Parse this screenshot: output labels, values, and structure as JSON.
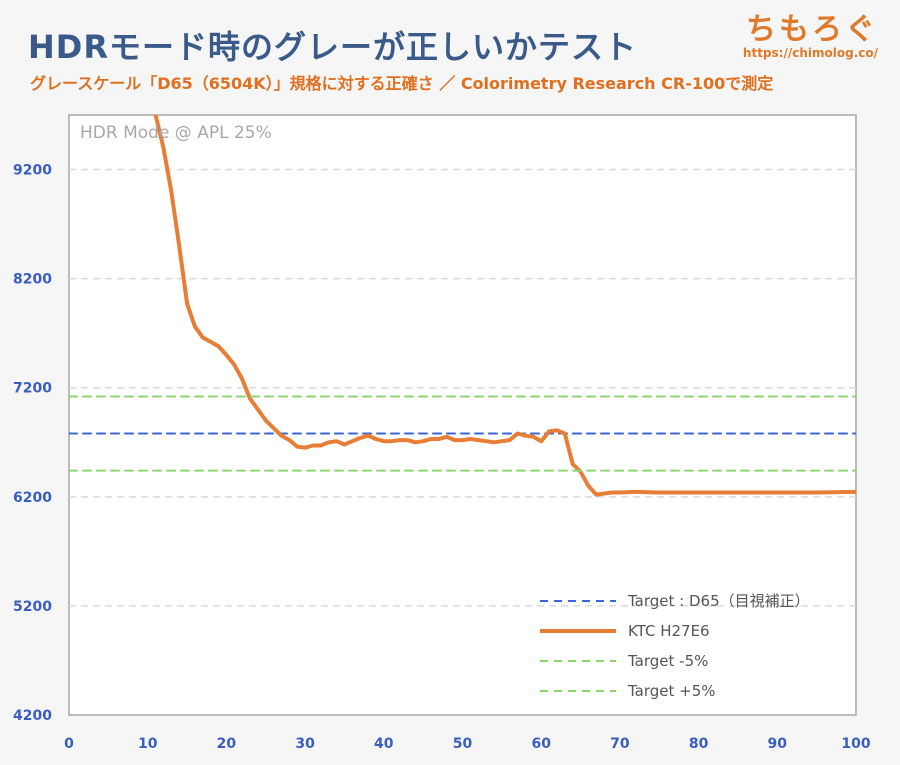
{
  "header": {
    "title": "HDRモード時のグレーが正しいかテスト",
    "subtitle": "グレースケール「D65（6504K）」規格に対する正確さ ／ Colorimetry Research CR-100で測定"
  },
  "brand": {
    "name": "ちもろぐ",
    "url": "https://chimolog.co/"
  },
  "chart_data": {
    "type": "line",
    "annotation": "HDR Mode @ APL 25%",
    "xlim": [
      0,
      100
    ],
    "ylim": [
      4200,
      9700
    ],
    "x_ticks": [
      0,
      10,
      20,
      30,
      40,
      50,
      60,
      70,
      80,
      90,
      100
    ],
    "y_ticks": [
      4200,
      5200,
      6200,
      7200,
      8200,
      9200
    ],
    "grid": true,
    "legend_position": "bottom-right",
    "series": [
      {
        "name": "Target : D65（目視補正）",
        "color": "#3a66d6",
        "style": "dashed",
        "x": [
          0,
          100
        ],
        "y": [
          6780,
          6780
        ]
      },
      {
        "name": "KTC H27E6",
        "color": "#e87d35",
        "style": "solid",
        "x": [
          11,
          12,
          13,
          14,
          15,
          16,
          17,
          18,
          19,
          20,
          21,
          22,
          23,
          24,
          25,
          26,
          27,
          28,
          29,
          30,
          31,
          32,
          33,
          34,
          35,
          36,
          37,
          38,
          39,
          40,
          41,
          42,
          43,
          44,
          45,
          46,
          47,
          48,
          49,
          50,
          51,
          52,
          53,
          54,
          55,
          56,
          57,
          58,
          59,
          60,
          61,
          62,
          63,
          64,
          65,
          66,
          67,
          68,
          69,
          70,
          72,
          75,
          80,
          85,
          90,
          95,
          100
        ],
        "y": [
          9700,
          9400,
          9000,
          8500,
          7970,
          7760,
          7660,
          7620,
          7580,
          7500,
          7410,
          7280,
          7100,
          7000,
          6900,
          6830,
          6760,
          6720,
          6660,
          6650,
          6670,
          6670,
          6700,
          6710,
          6680,
          6710,
          6740,
          6760,
          6730,
          6710,
          6710,
          6720,
          6720,
          6700,
          6710,
          6730,
          6730,
          6750,
          6720,
          6720,
          6730,
          6720,
          6710,
          6700,
          6710,
          6720,
          6780,
          6760,
          6750,
          6710,
          6800,
          6810,
          6780,
          6500,
          6430,
          6300,
          6220,
          6230,
          6240,
          6240,
          6245,
          6240,
          6240,
          6240,
          6240,
          6240,
          6245
        ]
      },
      {
        "name": "Target -5%",
        "color": "#8dd66e",
        "style": "dashed",
        "x": [
          0,
          100
        ],
        "y": [
          6440,
          6440
        ]
      },
      {
        "name": "Target +5%",
        "color": "#8dd66e",
        "style": "dashed",
        "x": [
          0,
          100
        ],
        "y": [
          7120,
          7120
        ]
      }
    ]
  }
}
